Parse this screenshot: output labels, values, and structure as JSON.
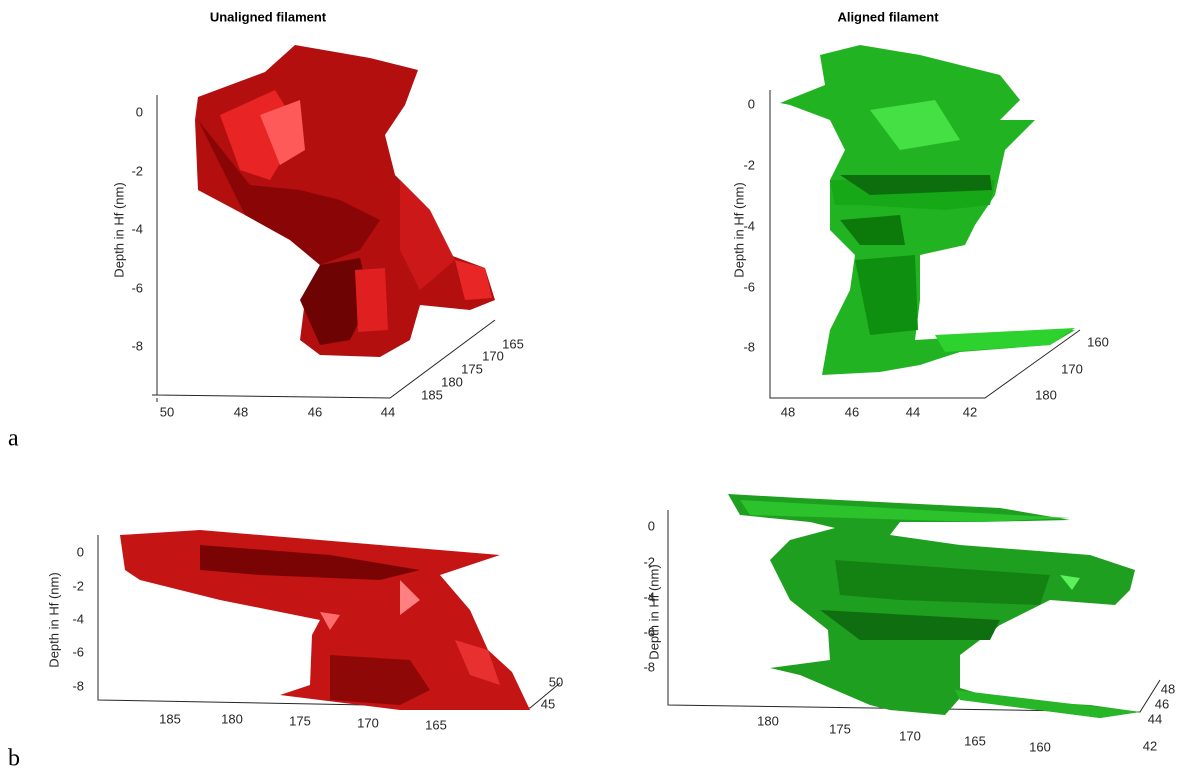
{
  "figure": {
    "row_labels": [
      "a",
      "b"
    ],
    "plots": [
      {
        "title": "Unaligned filament",
        "zlabel": "Depth in Hf (nm)",
        "zticks": [
          0,
          -2,
          -4,
          -6,
          -8
        ],
        "xticks": [
          50,
          48,
          46,
          44
        ],
        "yticks": [
          165,
          170,
          175,
          180,
          185
        ]
      },
      {
        "title": "Aligned filament",
        "zlabel": "Depth in Hf (nm)",
        "zticks": [
          0,
          -2,
          -4,
          -6,
          -8
        ],
        "xticks": [
          48,
          46,
          44,
          42
        ],
        "yticks": [
          160,
          170,
          180
        ]
      },
      {
        "zlabel": "Depth in Hf (nm)",
        "zticks": [
          0,
          -2,
          -4,
          -6,
          -8
        ],
        "xticks": [
          185,
          180,
          175,
          170,
          165
        ],
        "yticks": [
          50,
          45
        ]
      },
      {
        "zlabel": "Depth in Hf (nm)",
        "zticks": [
          0,
          -2,
          -4,
          -6,
          -8
        ],
        "xticks": [
          180,
          175,
          170,
          165,
          160
        ],
        "yticks": [
          48,
          46,
          44,
          42
        ]
      }
    ]
  }
}
